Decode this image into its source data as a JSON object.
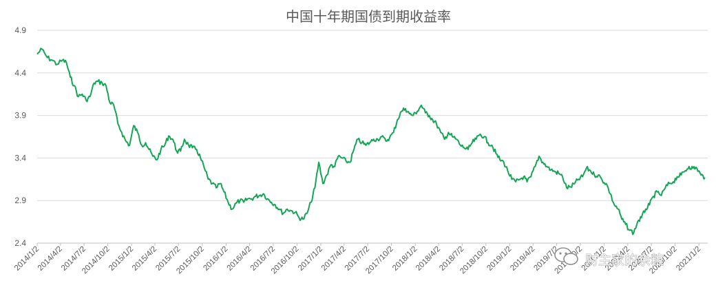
{
  "chart_data": {
    "type": "line",
    "title": "中国十年期国债到期收益率",
    "xlabel": "",
    "ylabel": "",
    "ylim": [
      2.4,
      4.9
    ],
    "yticks": [
      "4.9",
      "4.4",
      "3.9",
      "3.4",
      "2.9",
      "2.4"
    ],
    "xticks": [
      "2014/1/2",
      "2014/4/2",
      "2014/7/2",
      "2014/10/2",
      "2015/1/2",
      "2015/4/2",
      "2015/7/2",
      "2015/10/2",
      "2016/1/2",
      "2016/4/2",
      "2016/7/2",
      "2016/10/2",
      "2017/1/2",
      "2017/4/2",
      "2017/7/2",
      "2017/10/2",
      "2018/1/2",
      "2018/4/2",
      "2018/7/2",
      "2018/10/2",
      "2019/1/2",
      "2019/4/2",
      "2019/7/2",
      "2019/10/2",
      "2020/1/2",
      "2020/4/2",
      "2020/7/2",
      "2020/10/2",
      "2021/1/2"
    ],
    "grid": true,
    "legend": "none",
    "series": [
      {
        "color": "#12a553",
        "points": [
          [
            "2014/1/2",
            4.62
          ],
          [
            "2014/1/20",
            4.68
          ],
          [
            "2014/2/10",
            4.58
          ],
          [
            "2014/3/1",
            4.55
          ],
          [
            "2014/3/20",
            4.5
          ],
          [
            "2014/4/10",
            4.55
          ],
          [
            "2014/4/25",
            4.52
          ],
          [
            "2014/5/10",
            4.35
          ],
          [
            "2014/5/25",
            4.25
          ],
          [
            "2014/6/10",
            4.12
          ],
          [
            "2014/6/25",
            4.15
          ],
          [
            "2014/7/10",
            4.08
          ],
          [
            "2014/7/25",
            4.12
          ],
          [
            "2014/8/10",
            4.28
          ],
          [
            "2014/8/25",
            4.3
          ],
          [
            "2014/9/10",
            4.28
          ],
          [
            "2014/9/25",
            4.25
          ],
          [
            "2014/10/10",
            4.05
          ],
          [
            "2014/10/25",
            4.02
          ],
          [
            "2014/11/10",
            3.8
          ],
          [
            "2014/11/25",
            3.7
          ],
          [
            "2014/12/10",
            3.6
          ],
          [
            "2014/12/25",
            3.55
          ],
          [
            "2015/1/10",
            3.78
          ],
          [
            "2015/1/25",
            3.7
          ],
          [
            "2015/2/10",
            3.55
          ],
          [
            "2015/2/25",
            3.58
          ],
          [
            "2015/3/10",
            3.5
          ],
          [
            "2015/3/25",
            3.42
          ],
          [
            "2015/4/10",
            3.38
          ],
          [
            "2015/4/25",
            3.5
          ],
          [
            "2015/5/10",
            3.55
          ],
          [
            "2015/5/25",
            3.66
          ],
          [
            "2015/6/10",
            3.62
          ],
          [
            "2015/6/25",
            3.48
          ],
          [
            "2015/7/10",
            3.48
          ],
          [
            "2015/7/25",
            3.62
          ],
          [
            "2015/8/10",
            3.55
          ],
          [
            "2015/8/25",
            3.52
          ],
          [
            "2015/9/10",
            3.5
          ],
          [
            "2015/9/25",
            3.4
          ],
          [
            "2015/10/10",
            3.28
          ],
          [
            "2015/10/25",
            3.15
          ],
          [
            "2015/11/10",
            3.1
          ],
          [
            "2015/11/25",
            3.05
          ],
          [
            "2015/12/10",
            3.1
          ],
          [
            "2015/12/25",
            3.0
          ],
          [
            "2016/1/10",
            2.88
          ],
          [
            "2016/1/25",
            2.8
          ],
          [
            "2016/2/10",
            2.87
          ],
          [
            "2016/2/25",
            2.9
          ],
          [
            "2016/3/10",
            2.88
          ],
          [
            "2016/3/25",
            2.92
          ],
          [
            "2016/4/10",
            2.92
          ],
          [
            "2016/4/25",
            2.95
          ],
          [
            "2016/5/10",
            2.96
          ],
          [
            "2016/5/25",
            2.98
          ],
          [
            "2016/6/10",
            2.92
          ],
          [
            "2016/6/25",
            2.88
          ],
          [
            "2016/7/10",
            2.85
          ],
          [
            "2016/7/25",
            2.8
          ],
          [
            "2016/8/10",
            2.75
          ],
          [
            "2016/8/25",
            2.8
          ],
          [
            "2016/9/10",
            2.78
          ],
          [
            "2016/9/25",
            2.76
          ],
          [
            "2016/10/10",
            2.7
          ],
          [
            "2016/10/25",
            2.68
          ],
          [
            "2016/11/10",
            2.75
          ],
          [
            "2016/11/25",
            2.88
          ],
          [
            "2016/12/10",
            3.05
          ],
          [
            "2016/12/25",
            3.35
          ],
          [
            "2017/1/10",
            3.1
          ],
          [
            "2017/1/25",
            3.2
          ],
          [
            "2017/2/10",
            3.32
          ],
          [
            "2017/2/25",
            3.3
          ],
          [
            "2017/3/10",
            3.42
          ],
          [
            "2017/3/25",
            3.4
          ],
          [
            "2017/4/10",
            3.36
          ],
          [
            "2017/4/25",
            3.35
          ],
          [
            "2017/5/10",
            3.5
          ],
          [
            "2017/5/25",
            3.62
          ],
          [
            "2017/6/10",
            3.58
          ],
          [
            "2017/6/25",
            3.55
          ],
          [
            "2017/7/10",
            3.58
          ],
          [
            "2017/7/25",
            3.62
          ],
          [
            "2017/8/10",
            3.62
          ],
          [
            "2017/8/25",
            3.65
          ],
          [
            "2017/9/10",
            3.6
          ],
          [
            "2017/9/25",
            3.64
          ],
          [
            "2017/10/10",
            3.7
          ],
          [
            "2017/10/25",
            3.85
          ],
          [
            "2017/11/10",
            3.95
          ],
          [
            "2017/11/25",
            3.98
          ],
          [
            "2017/12/10",
            3.92
          ],
          [
            "2017/12/25",
            3.9
          ],
          [
            "2018/1/10",
            3.95
          ],
          [
            "2018/1/25",
            4.02
          ],
          [
            "2018/2/10",
            3.93
          ],
          [
            "2018/2/25",
            3.9
          ],
          [
            "2018/3/10",
            3.85
          ],
          [
            "2018/3/25",
            3.8
          ],
          [
            "2018/4/10",
            3.7
          ],
          [
            "2018/4/25",
            3.62
          ],
          [
            "2018/5/10",
            3.7
          ],
          [
            "2018/5/25",
            3.65
          ],
          [
            "2018/6/10",
            3.62
          ],
          [
            "2018/6/25",
            3.55
          ],
          [
            "2018/7/10",
            3.52
          ],
          [
            "2018/7/25",
            3.5
          ],
          [
            "2018/8/10",
            3.58
          ],
          [
            "2018/8/25",
            3.62
          ],
          [
            "2018/9/10",
            3.68
          ],
          [
            "2018/9/25",
            3.65
          ],
          [
            "2018/10/10",
            3.58
          ],
          [
            "2018/10/25",
            3.55
          ],
          [
            "2018/11/10",
            3.45
          ],
          [
            "2018/11/25",
            3.38
          ],
          [
            "2018/12/10",
            3.35
          ],
          [
            "2018/12/25",
            3.25
          ],
          [
            "2019/1/10",
            3.15
          ],
          [
            "2019/1/25",
            3.12
          ],
          [
            "2019/2/10",
            3.15
          ],
          [
            "2019/2/25",
            3.18
          ],
          [
            "2019/3/10",
            3.12
          ],
          [
            "2019/3/25",
            3.18
          ],
          [
            "2019/4/10",
            3.3
          ],
          [
            "2019/4/25",
            3.42
          ],
          [
            "2019/5/10",
            3.35
          ],
          [
            "2019/5/25",
            3.3
          ],
          [
            "2019/6/10",
            3.26
          ],
          [
            "2019/6/25",
            3.24
          ],
          [
            "2019/7/10",
            3.22
          ],
          [
            "2019/7/25",
            3.18
          ],
          [
            "2019/8/10",
            3.05
          ],
          [
            "2019/8/25",
            3.06
          ],
          [
            "2019/9/10",
            3.1
          ],
          [
            "2019/9/25",
            3.15
          ],
          [
            "2019/10/10",
            3.18
          ],
          [
            "2019/10/25",
            3.28
          ],
          [
            "2019/11/10",
            3.25
          ],
          [
            "2019/11/25",
            3.2
          ],
          [
            "2019/12/10",
            3.2
          ],
          [
            "2019/12/25",
            3.14
          ],
          [
            "2020/1/10",
            3.1
          ],
          [
            "2020/1/25",
            2.98
          ],
          [
            "2020/2/10",
            2.85
          ],
          [
            "2020/2/25",
            2.8
          ],
          [
            "2020/3/10",
            2.68
          ],
          [
            "2020/3/25",
            2.62
          ],
          [
            "2020/4/10",
            2.55
          ],
          [
            "2020/4/25",
            2.52
          ],
          [
            "2020/5/10",
            2.65
          ],
          [
            "2020/5/25",
            2.7
          ],
          [
            "2020/6/10",
            2.8
          ],
          [
            "2020/6/25",
            2.85
          ],
          [
            "2020/7/10",
            2.95
          ],
          [
            "2020/7/25",
            3.0
          ],
          [
            "2020/8/10",
            2.96
          ],
          [
            "2020/8/25",
            3.05
          ],
          [
            "2020/9/10",
            3.1
          ],
          [
            "2020/9/25",
            3.12
          ],
          [
            "2020/10/10",
            3.18
          ],
          [
            "2020/10/25",
            3.2
          ],
          [
            "2020/11/10",
            3.25
          ],
          [
            "2020/11/25",
            3.3
          ],
          [
            "2020/12/10",
            3.28
          ],
          [
            "2020/12/25",
            3.28
          ],
          [
            "2021/1/10",
            3.2
          ],
          [
            "2021/1/25",
            3.17
          ]
        ]
      }
    ]
  },
  "watermark": {
    "text": "财主家的余粮",
    "icon": "wechat-icon"
  }
}
